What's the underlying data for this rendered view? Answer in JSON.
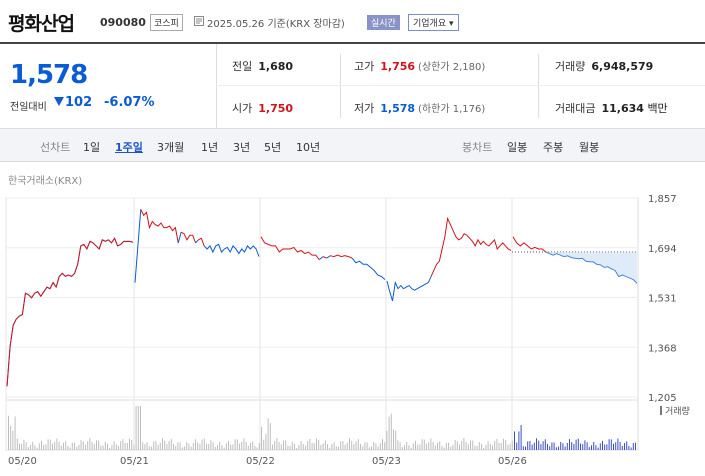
{
  "header": {
    "name": "평화산업",
    "code": "090080",
    "market": "코스피",
    "date": "2025.05.26",
    "basis": "기준(KRX 장마감)",
    "realtime": "실시간",
    "corp_info": "기업개요"
  },
  "summary": {
    "price": "1,578",
    "change_label": "전일대비",
    "change": "102",
    "change_pct": "-6.07%",
    "prev_label": "전일",
    "prev": "1,680",
    "high_label": "고가",
    "high": "1,756",
    "upper_limit": "(상한가 2,180)",
    "volume_label": "거래량",
    "volume": "6,948,579",
    "open_label": "시가",
    "open": "1,750",
    "low_label": "저가",
    "low": "1,578",
    "lower_limit": "(하한가 1,176)",
    "amount_label": "거래대금",
    "amount": "11,634",
    "amount_unit": "백만"
  },
  "period_tabs": {
    "line_label": "선차트",
    "items": [
      "1일",
      "1주일",
      "3개월",
      "1년",
      "3년",
      "5년",
      "10년"
    ],
    "selected": "1주일",
    "candle_label": "봉차트",
    "candle_items": [
      "일봉",
      "주봉",
      "월봉"
    ]
  },
  "source": "한국거래소(KRX)",
  "colors": {
    "up": "#d3121b",
    "down": "#0a5bd6",
    "accent": "#0a5bd6"
  },
  "chart_data": {
    "type": "line",
    "y_ticks": [
      "1,857",
      "1,694",
      "1,531",
      "1,368",
      "1,205"
    ],
    "ylim": [
      1205,
      1857
    ],
    "x_ticks": [
      "05/20",
      "05/21",
      "05/22",
      "05/23",
      "05/26"
    ],
    "prev_close": 1680,
    "volume_legend": "거래량",
    "series": [
      {
        "values": [
          1240,
          1370,
          1440,
          1460,
          1470,
          1475,
          1545,
          1540,
          1530,
          1545,
          1550,
          1535,
          1550,
          1565,
          1560,
          1580,
          1565,
          1600,
          1610,
          1600,
          1605,
          1600,
          1610,
          1640,
          1700,
          1705,
          1690,
          1715,
          1710,
          1700,
          1690,
          1720,
          1715,
          1720,
          1710,
          1725,
          1700,
          1705,
          1715,
          1715,
          1715,
          1712
        ]
      },
      {
        "values": [
          1580,
          1700,
          1820,
          1800,
          1810,
          1760,
          1780,
          1770,
          1765,
          1775,
          1760,
          1760,
          1765,
          1750,
          1760,
          1710,
          1745,
          1740,
          1720,
          1735,
          1735,
          1710,
          1720,
          1725,
          1700,
          1690,
          1700,
          1680,
          1700,
          1705,
          1680,
          1690,
          1695,
          1680,
          1700,
          1690,
          1675,
          1690,
          1680,
          1700,
          1690,
          1700,
          1690,
          1665
        ]
      },
      {
        "values": [
          1730,
          1710,
          1705,
          1700,
          1700,
          1680,
          1690,
          1690,
          1690,
          1695,
          1680,
          1685,
          1675,
          1680,
          1670,
          1670,
          1655,
          1665,
          1660,
          1668,
          1665,
          1670,
          1665,
          1668,
          1665,
          1660,
          1645,
          1650,
          1640,
          1640,
          1630,
          1620,
          1605,
          1600,
          1590
        ]
      },
      {
        "values": [
          1585,
          1550,
          1520,
          1580,
          1560,
          1570,
          1560,
          1565,
          1570,
          1560,
          1555,
          1560,
          1565,
          1570,
          1575,
          1580,
          1600,
          1620,
          1640,
          1650,
          1690,
          1730,
          1790,
          1770,
          1750,
          1730,
          1720,
          1725,
          1740,
          1735,
          1725,
          1715,
          1700,
          1720,
          1705,
          1715,
          1705,
          1700,
          1710,
          1720,
          1690,
          1700,
          1710,
          1700,
          1690,
          1685
        ]
      },
      {
        "values": [
          1730,
          1710,
          1700,
          1710,
          1700,
          1690,
          1695,
          1690,
          1690,
          1680,
          1675,
          1670,
          1675,
          1670,
          1665,
          1668,
          1662,
          1660,
          1658,
          1660,
          1650,
          1648,
          1648,
          1640,
          1638,
          1630,
          1632,
          1625,
          1620,
          1600,
          1605,
          1600,
          1595,
          1590,
          1578
        ]
      }
    ]
  }
}
